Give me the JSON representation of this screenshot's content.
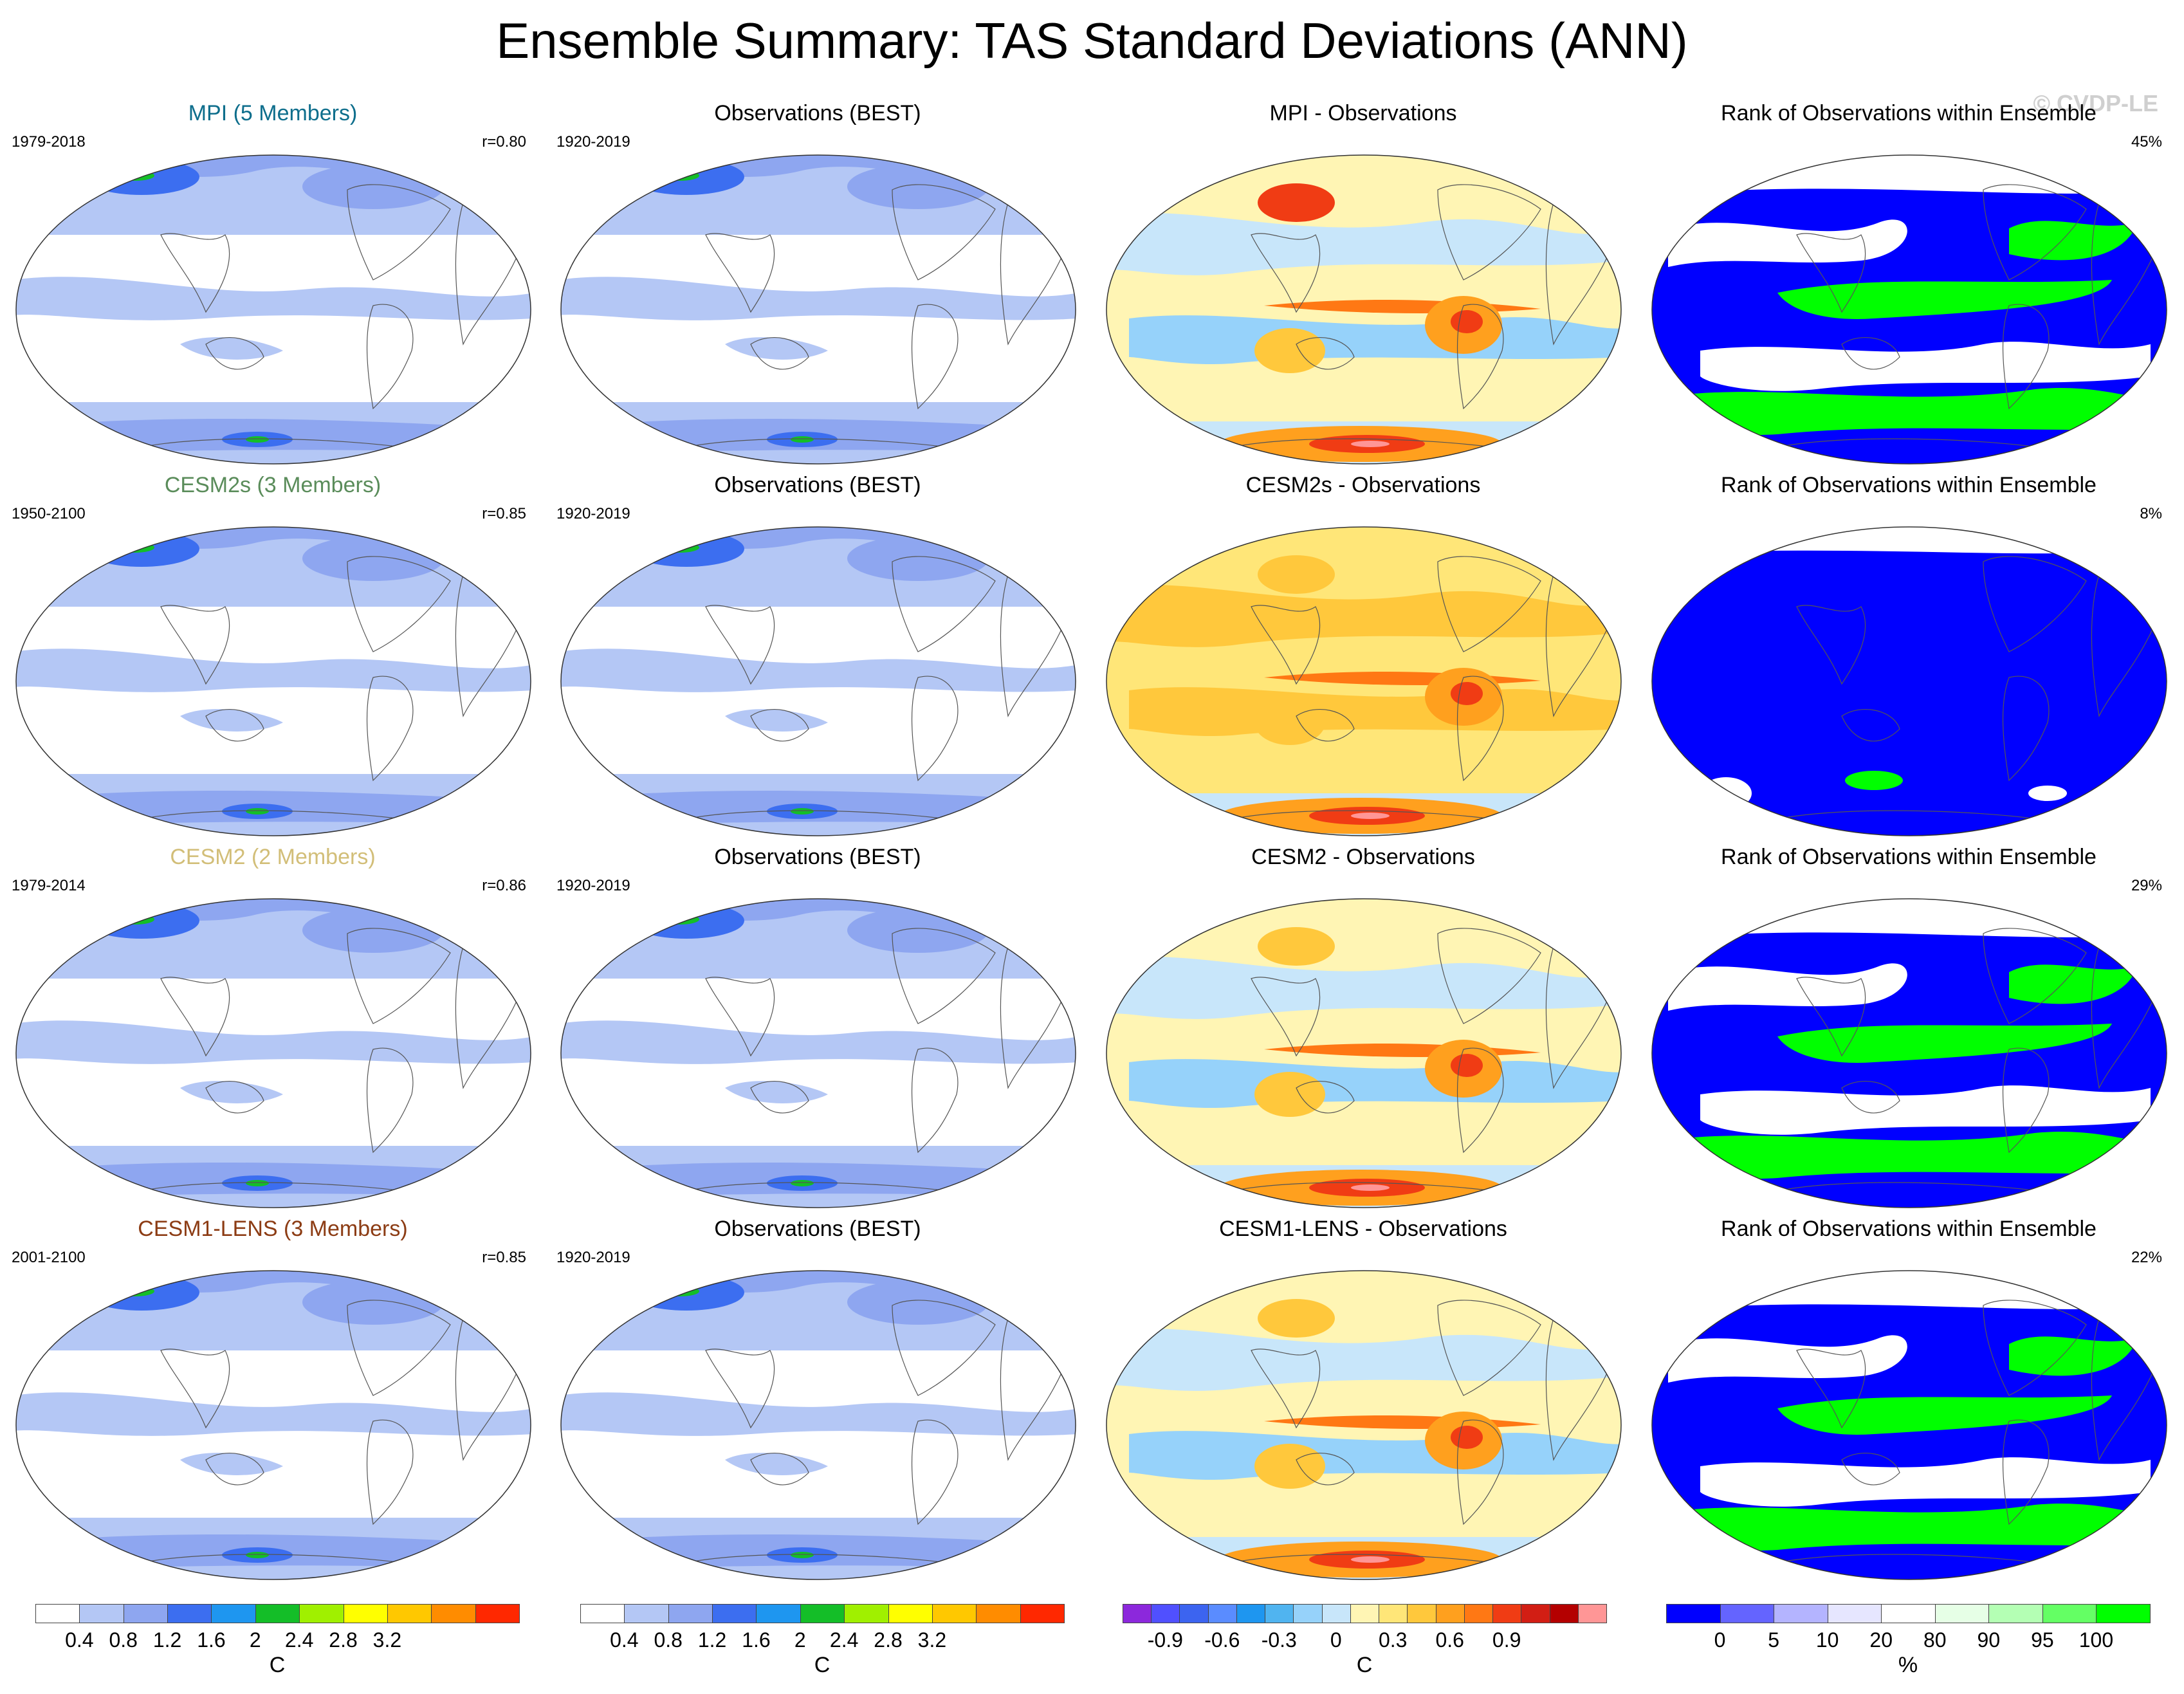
{
  "title": "Ensemble Summary: TAS Standard Deviations (ANN)",
  "copyright": "© CVDP-LE",
  "colors": {
    "sd_levels": [
      "#ffffff",
      "#b4c7f5",
      "#8ea6f0",
      "#3c6ef0",
      "#1e96f0",
      "#14be28",
      "#a0f000",
      "#ffff00",
      "#ffc800",
      "#ff8c00",
      "#ff2800"
    ],
    "diff_levels": [
      "#8c28dc",
      "#5050ff",
      "#3c64f0",
      "#5a8cff",
      "#1e96f0",
      "#50b4f0",
      "#96d2fa",
      "#c8e6fa",
      "#fff5b4",
      "#ffe678",
      "#ffc83c",
      "#ffa01e",
      "#ff7814",
      "#f03c14",
      "#d21e14",
      "#b40000",
      "#ff9696"
    ],
    "rank_levels": [
      "#0000ff",
      "#6464ff",
      "#b4b4ff",
      "#e6e6ff",
      "#ffffff",
      "#e6ffe6",
      "#b4ffb4",
      "#64ff64",
      "#00ff00"
    ]
  },
  "rows": [
    {
      "model": {
        "title": "MPI (5 Members)",
        "title_color": "#0e6e8c",
        "period": "1979-2018",
        "corr": "r=0.80"
      },
      "obs": {
        "title": "Observations (BEST)",
        "period": "1920-2019"
      },
      "diff": {
        "title": "MPI - Observations"
      },
      "rank": {
        "title": "Rank of Observations within Ensemble",
        "pct": "45%"
      }
    },
    {
      "model": {
        "title": "CESM2s (3 Members)",
        "title_color": "#5a8c5a",
        "period": "1950-2100",
        "corr": "r=0.85"
      },
      "obs": {
        "title": "Observations (BEST)",
        "period": "1920-2019"
      },
      "diff": {
        "title": "CESM2s - Observations"
      },
      "rank": {
        "title": "Rank of Observations within Ensemble",
        "pct": "8%"
      }
    },
    {
      "model": {
        "title": "CESM2 (2 Members)",
        "title_color": "#d2be78",
        "period": "1979-2014",
        "corr": "r=0.86"
      },
      "obs": {
        "title": "Observations (BEST)",
        "period": "1920-2019"
      },
      "diff": {
        "title": "CESM2 - Observations"
      },
      "rank": {
        "title": "Rank of Observations within Ensemble",
        "pct": "29%"
      }
    },
    {
      "model": {
        "title": "CESM1-LENS (3 Members)",
        "title_color": "#8c3c14",
        "period": "2001-2100",
        "corr": "r=0.85"
      },
      "obs": {
        "title": "Observations (BEST)",
        "period": "1920-2019"
      },
      "diff": {
        "title": "CESM1-LENS - Observations"
      },
      "rank": {
        "title": "Rank of Observations within Ensemble",
        "pct": "22%"
      }
    }
  ],
  "colorbars": [
    {
      "ticks": [
        "0.4",
        "0.8",
        "1.2",
        "1.6",
        "2",
        "2.4",
        "2.8",
        "3.2"
      ],
      "unit": "C"
    },
    {
      "ticks": [
        "0.4",
        "0.8",
        "1.2",
        "1.6",
        "2",
        "2.4",
        "2.8",
        "3.2"
      ],
      "unit": "C"
    },
    {
      "ticks": [
        "-0.9",
        "-0.6",
        "-0.3",
        "0",
        "0.3",
        "0.6",
        "0.9"
      ],
      "unit": "C"
    },
    {
      "ticks": [
        "0",
        "5",
        "10",
        "20",
        "80",
        "90",
        "95",
        "100"
      ],
      "unit": "%"
    }
  ]
}
